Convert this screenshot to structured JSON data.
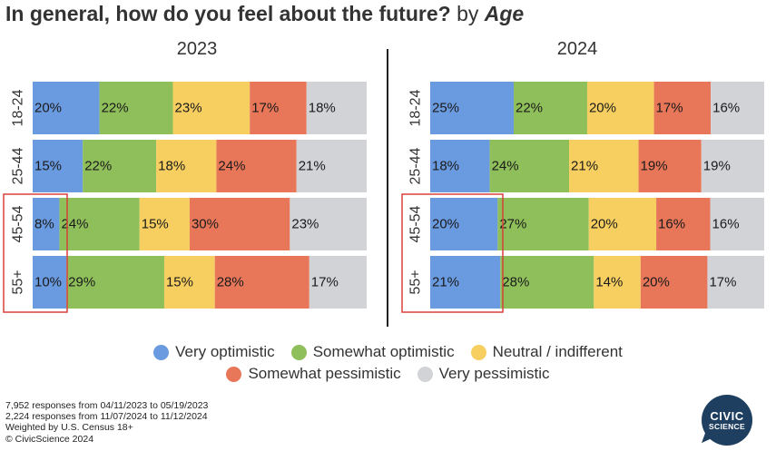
{
  "title": {
    "main": "In general, how do you feel about the future?",
    "by": "by",
    "dimension": "Age"
  },
  "colors": {
    "very_optimistic": "#6a9be0",
    "somewhat_optimistic": "#8fbf5a",
    "neutral": "#f6cf60",
    "somewhat_pessimistic": "#e8775a",
    "very_pessimistic": "#d2d3d7",
    "highlight_box": "#d9403a",
    "logo": "#1f3f60"
  },
  "legend": {
    "very_optimistic": "Very optimistic",
    "somewhat_optimistic": "Somewhat optimistic",
    "neutral": "Neutral / indifferent",
    "somewhat_pessimistic": "Somewhat pessimistic",
    "very_pessimistic": "Very pessimistic"
  },
  "chart_data": [
    {
      "type": "bar",
      "orientation": "horizontal-stacked-100",
      "title": "2023",
      "categories": [
        "18-24",
        "25-44",
        "45-54",
        "55+"
      ],
      "highlighted_categories": [
        "45-54",
        "55+"
      ],
      "highlighted_series": "Very optimistic",
      "series": [
        {
          "name": "Very optimistic",
          "values": [
            20,
            15,
            8,
            10
          ]
        },
        {
          "name": "Somewhat optimistic",
          "values": [
            22,
            22,
            24,
            29
          ]
        },
        {
          "name": "Neutral / indifferent",
          "values": [
            23,
            18,
            15,
            15
          ]
        },
        {
          "name": "Somewhat pessimistic",
          "values": [
            17,
            24,
            30,
            28
          ]
        },
        {
          "name": "Very pessimistic",
          "values": [
            18,
            21,
            23,
            17
          ]
        }
      ],
      "value_suffix": "%"
    },
    {
      "type": "bar",
      "orientation": "horizontal-stacked-100",
      "title": "2024",
      "categories": [
        "18-24",
        "25-44",
        "45-54",
        "55+"
      ],
      "highlighted_categories": [
        "45-54",
        "55+"
      ],
      "highlighted_series": "Very optimistic",
      "series": [
        {
          "name": "Very optimistic",
          "values": [
            25,
            18,
            20,
            21
          ]
        },
        {
          "name": "Somewhat optimistic",
          "values": [
            22,
            24,
            27,
            28
          ]
        },
        {
          "name": "Neutral / indifferent",
          "values": [
            20,
            21,
            20,
            14
          ]
        },
        {
          "name": "Somewhat pessimistic",
          "values": [
            17,
            19,
            16,
            20
          ]
        },
        {
          "name": "Very pessimistic",
          "values": [
            16,
            19,
            16,
            17
          ]
        }
      ],
      "value_suffix": "%"
    }
  ],
  "footnotes": [
    "7,952 responses from 04/11/2023 to 05/19/2023",
    "2,224 responses from 11/07/2024 to 11/12/2024",
    "Weighted by U.S. Census 18+",
    "© CivicScience 2024"
  ],
  "logo": {
    "line1": "CIVIC",
    "line2": "SCIENCE"
  }
}
